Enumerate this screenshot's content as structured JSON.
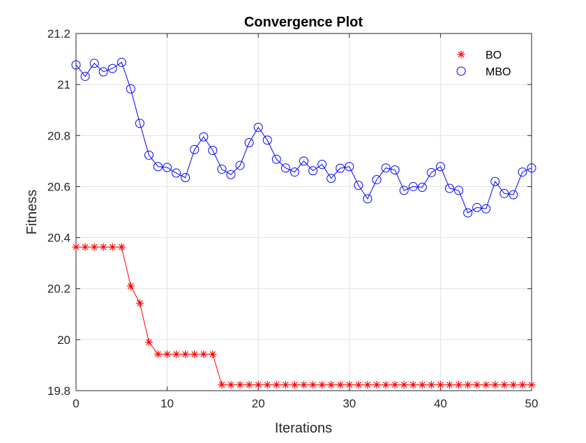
{
  "chart_data": {
    "type": "line",
    "title": "Convergence Plot",
    "xlabel": "Iterations",
    "ylabel": "Fitness",
    "xlim": [
      0,
      50
    ],
    "ylim": [
      19.8,
      21.2
    ],
    "x_ticks": [
      0,
      10,
      20,
      30,
      40,
      50
    ],
    "y_ticks": [
      19.8,
      20,
      20.2,
      20.4,
      20.6,
      20.8,
      21,
      21.2
    ],
    "x_tick_labels": [
      "0",
      "10",
      "20",
      "30",
      "40",
      "50"
    ],
    "y_tick_labels": [
      "19.8",
      "20",
      "20.2",
      "20.4",
      "20.6",
      "20.8",
      "21",
      "21.2"
    ],
    "grid": true,
    "legend_position": "top-right",
    "x": [
      0,
      1,
      2,
      3,
      4,
      5,
      6,
      7,
      8,
      9,
      10,
      11,
      12,
      13,
      14,
      15,
      16,
      17,
      18,
      19,
      20,
      21,
      22,
      23,
      24,
      25,
      26,
      27,
      28,
      29,
      30,
      31,
      32,
      33,
      34,
      35,
      36,
      37,
      38,
      39,
      40,
      41,
      42,
      43,
      44,
      45,
      46,
      47,
      48,
      49,
      50
    ],
    "series": [
      {
        "name": "BO",
        "color": "#ff0000",
        "marker": "asterisk",
        "values": [
          20.363,
          20.363,
          20.363,
          20.363,
          20.363,
          20.363,
          20.21,
          20.143,
          19.99,
          19.943,
          19.943,
          19.943,
          19.943,
          19.943,
          19.943,
          19.943,
          19.823,
          19.823,
          19.823,
          19.823,
          19.823,
          19.823,
          19.823,
          19.823,
          19.823,
          19.823,
          19.823,
          19.823,
          19.823,
          19.823,
          19.823,
          19.823,
          19.823,
          19.823,
          19.823,
          19.823,
          19.823,
          19.823,
          19.823,
          19.823,
          19.823,
          19.823,
          19.823,
          19.823,
          19.823,
          19.823,
          19.823,
          19.823,
          19.823,
          19.823,
          19.823
        ]
      },
      {
        "name": "MBO",
        "color": "#0000ff",
        "marker": "circle",
        "values": [
          21.077,
          21.032,
          21.083,
          21.05,
          21.063,
          21.087,
          20.983,
          20.848,
          20.723,
          20.678,
          20.675,
          20.653,
          20.635,
          20.745,
          20.795,
          20.742,
          20.668,
          20.647,
          20.683,
          20.772,
          20.832,
          20.782,
          20.707,
          20.673,
          20.657,
          20.7,
          20.662,
          20.687,
          20.632,
          20.672,
          20.678,
          20.605,
          20.552,
          20.627,
          20.673,
          20.665,
          20.585,
          20.6,
          20.597,
          20.655,
          20.678,
          20.593,
          20.585,
          20.497,
          20.518,
          20.513,
          20.62,
          20.573,
          20.568,
          20.657,
          20.673
        ]
      }
    ]
  }
}
